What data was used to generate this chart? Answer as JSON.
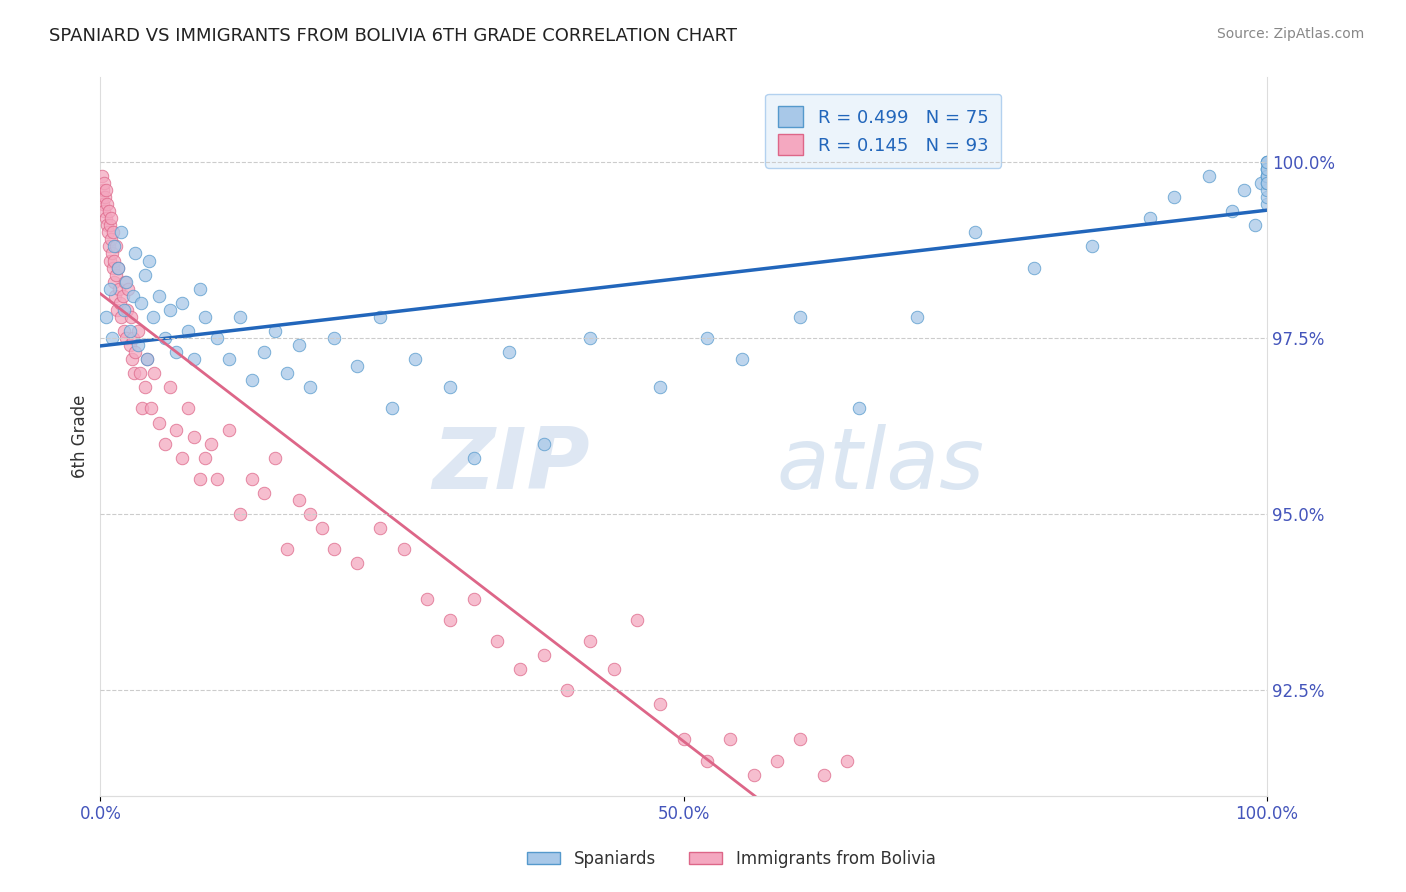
{
  "title": "SPANIARD VS IMMIGRANTS FROM BOLIVIA 6TH GRADE CORRELATION CHART",
  "source": "Source: ZipAtlas.com",
  "ylabel": "6th Grade",
  "xlim": [
    0.0,
    100.0
  ],
  "ylim": [
    91.0,
    101.2
  ],
  "yticks": [
    92.5,
    95.0,
    97.5,
    100.0
  ],
  "ytick_labels": [
    "92.5%",
    "95.0%",
    "97.5%",
    "100.0%"
  ],
  "xtick_labels": [
    "0.0%",
    "50.0%",
    "100.0%"
  ],
  "xtick_pos": [
    0.0,
    50.0,
    100.0
  ],
  "series": [
    {
      "name": "Spaniards",
      "R": 0.499,
      "N": 75,
      "color": "#a8c8e8",
      "edge_color": "#5599cc",
      "trend_color": "#2266bb"
    },
    {
      "name": "Immigrants from Bolivia",
      "R": 0.145,
      "N": 93,
      "color": "#f4a8c0",
      "edge_color": "#dd6688",
      "trend_color": "#dd6688"
    }
  ],
  "legend_R_color": "#2266bb",
  "watermark_zip": "ZIP",
  "watermark_atlas": "atlas",
  "background_color": "#ffffff",
  "grid_color": "#cccccc",
  "title_color": "#222222",
  "axis_color": "#4455bb",
  "marker_size": 9,
  "blue_x": [
    0.5,
    0.8,
    1.0,
    1.2,
    1.5,
    1.8,
    2.0,
    2.2,
    2.5,
    2.8,
    3.0,
    3.2,
    3.5,
    3.8,
    4.0,
    4.2,
    4.5,
    5.0,
    5.5,
    6.0,
    6.5,
    7.0,
    7.5,
    8.0,
    8.5,
    9.0,
    10.0,
    11.0,
    12.0,
    13.0,
    14.0,
    15.0,
    16.0,
    17.0,
    18.0,
    20.0,
    22.0,
    24.0,
    25.0,
    27.0,
    30.0,
    32.0,
    35.0,
    38.0,
    42.0,
    48.0,
    52.0,
    55.0,
    60.0,
    65.0,
    70.0,
    75.0,
    80.0,
    85.0,
    90.0,
    92.0,
    95.0,
    97.0,
    98.0,
    99.0,
    99.5,
    100.0,
    100.0,
    100.0,
    100.0,
    100.0,
    100.0,
    100.0,
    100.0,
    100.0,
    100.0,
    100.0,
    100.0,
    100.0,
    100.0
  ],
  "blue_y": [
    97.8,
    98.2,
    97.5,
    98.8,
    98.5,
    99.0,
    97.9,
    98.3,
    97.6,
    98.1,
    98.7,
    97.4,
    98.0,
    98.4,
    97.2,
    98.6,
    97.8,
    98.1,
    97.5,
    97.9,
    97.3,
    98.0,
    97.6,
    97.2,
    98.2,
    97.8,
    97.5,
    97.2,
    97.8,
    96.9,
    97.3,
    97.6,
    97.0,
    97.4,
    96.8,
    97.5,
    97.1,
    97.8,
    96.5,
    97.2,
    96.8,
    95.8,
    97.3,
    96.0,
    97.5,
    96.8,
    97.5,
    97.2,
    97.8,
    96.5,
    97.8,
    99.0,
    98.5,
    98.8,
    99.2,
    99.5,
    99.8,
    99.3,
    99.6,
    99.1,
    99.7,
    99.4,
    99.5,
    99.8,
    99.6,
    99.9,
    99.7,
    99.8,
    100.0,
    99.9,
    100.0,
    99.8,
    99.7,
    99.9,
    100.0
  ],
  "pink_x": [
    0.1,
    0.15,
    0.2,
    0.25,
    0.3,
    0.35,
    0.4,
    0.45,
    0.5,
    0.55,
    0.6,
    0.65,
    0.7,
    0.75,
    0.8,
    0.85,
    0.9,
    0.95,
    1.0,
    1.05,
    1.1,
    1.15,
    1.2,
    1.25,
    1.3,
    1.35,
    1.4,
    1.5,
    1.6,
    1.7,
    1.8,
    1.9,
    2.0,
    2.1,
    2.2,
    2.3,
    2.4,
    2.5,
    2.6,
    2.7,
    2.8,
    2.9,
    3.0,
    3.2,
    3.4,
    3.6,
    3.8,
    4.0,
    4.3,
    4.6,
    5.0,
    5.5,
    6.0,
    6.5,
    7.0,
    7.5,
    8.0,
    8.5,
    9.0,
    9.5,
    10.0,
    11.0,
    12.0,
    13.0,
    14.0,
    15.0,
    16.0,
    17.0,
    18.0,
    19.0,
    20.0,
    22.0,
    24.0,
    26.0,
    28.0,
    30.0,
    32.0,
    34.0,
    36.0,
    38.0,
    40.0,
    42.0,
    44.0,
    46.0,
    48.0,
    50.0,
    52.0,
    54.0,
    56.0,
    58.0,
    60.0,
    62.0,
    64.0
  ],
  "pink_y": [
    99.8,
    99.5,
    99.6,
    99.4,
    99.7,
    99.3,
    99.5,
    99.2,
    99.6,
    99.1,
    99.4,
    99.0,
    99.3,
    98.8,
    99.1,
    98.6,
    99.2,
    98.9,
    98.7,
    98.5,
    99.0,
    98.3,
    98.6,
    98.1,
    98.8,
    98.4,
    97.9,
    98.5,
    98.2,
    98.0,
    97.8,
    98.1,
    97.6,
    98.3,
    97.5,
    97.9,
    98.2,
    97.4,
    97.8,
    97.2,
    97.5,
    97.0,
    97.3,
    97.6,
    97.0,
    96.5,
    96.8,
    97.2,
    96.5,
    97.0,
    96.3,
    96.0,
    96.8,
    96.2,
    95.8,
    96.5,
    96.1,
    95.5,
    95.8,
    96.0,
    95.5,
    96.2,
    95.0,
    95.5,
    95.3,
    95.8,
    94.5,
    95.2,
    95.0,
    94.8,
    94.5,
    94.3,
    94.8,
    94.5,
    93.8,
    93.5,
    93.8,
    93.2,
    92.8,
    93.0,
    92.5,
    93.2,
    92.8,
    93.5,
    92.3,
    91.8,
    91.5,
    91.8,
    91.3,
    91.5,
    91.8,
    91.3,
    91.5
  ]
}
